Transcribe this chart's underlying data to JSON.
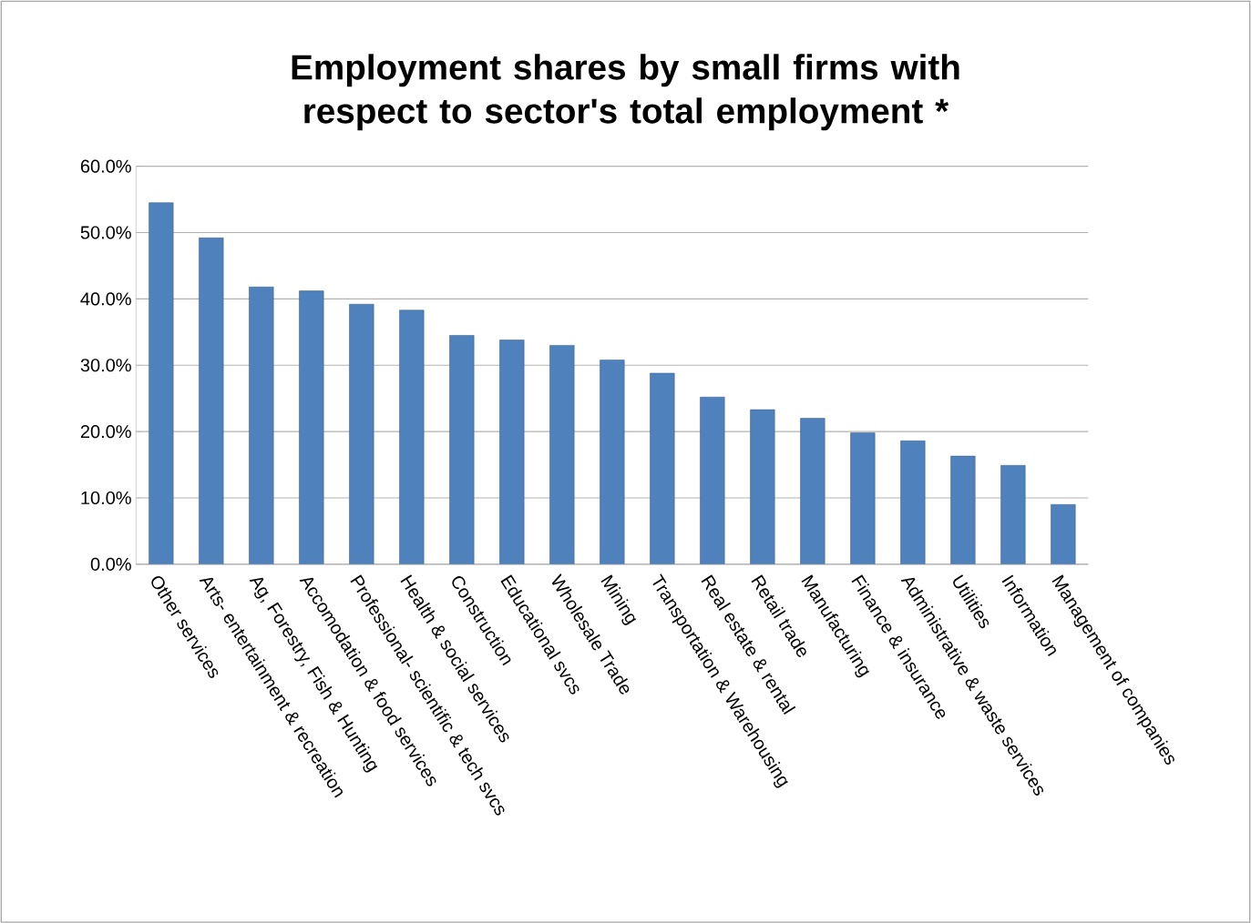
{
  "chart_data": {
    "type": "bar",
    "title": "Employment shares by small firms with respect to sector's total employment *",
    "categories": [
      "Other services",
      "Arts- entertainment & recreation",
      "Ag, Forestry, Fish & Hunting",
      "Accomodation & food services",
      "Professional- scientific & tech svcs",
      "Health & social services",
      "Construction",
      "Educational svcs",
      "Wholesale Trade",
      "Mining",
      "Transportation & Warehousing",
      "Real estate & rental",
      "Retail trade",
      "Manufacturing",
      "Finance & insurance",
      "Administrative & waste services",
      "Utilities",
      "Information",
      "Management of companies"
    ],
    "values": [
      54.5,
      49.2,
      41.8,
      41.2,
      39.2,
      38.3,
      34.5,
      33.8,
      33.0,
      30.8,
      28.8,
      25.2,
      23.3,
      22.0,
      19.8,
      18.6,
      16.3,
      14.9,
      9.0
    ],
    "color": "#4f81bd",
    "ylim": [
      0,
      60
    ],
    "yticks": [
      {
        "value": 0,
        "label": "0.0%"
      },
      {
        "value": 10,
        "label": "10.0%"
      },
      {
        "value": 20,
        "label": "20.0%"
      },
      {
        "value": 30,
        "label": "30.0%"
      },
      {
        "value": 40,
        "label": "40.0%"
      },
      {
        "value": 50,
        "label": "50.0%"
      },
      {
        "value": 60,
        "label": "60.0%"
      }
    ],
    "grid": "y"
  }
}
